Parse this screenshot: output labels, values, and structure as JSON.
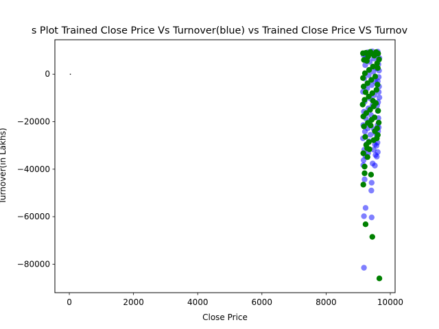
{
  "chart_data": {
    "type": "scatter",
    "title": "s Plot Trained Close Price Vs Turnover(blue) vs Trained Close Price VS Turnov",
    "xlabel": "Close Price",
    "ylabel": "Turnover(in Lakhs)",
    "xlim": [
      -450,
      10150
    ],
    "ylim": [
      -92000,
      14500
    ],
    "xticks": [
      0,
      2000,
      4000,
      6000,
      8000,
      10000
    ],
    "yticks": [
      0,
      -20000,
      -40000,
      -60000,
      -80000
    ],
    "xtick_labels": [
      "0",
      "2000",
      "4000",
      "6000",
      "8000",
      "10000"
    ],
    "ytick_labels": [
      "0",
      "−20000",
      "−40000",
      "−60000",
      "−80000"
    ],
    "grid": false,
    "legend": "none",
    "series": [
      {
        "color": "#0000ff",
        "alpha": 0.5,
        "points": [
          [
            9180,
            -81500
          ],
          [
            9180,
            -59800
          ],
          [
            9420,
            -60300
          ],
          [
            9230,
            -56300
          ],
          [
            9410,
            -49000
          ],
          [
            9420,
            -45700
          ],
          [
            9200,
            -44300
          ],
          [
            9520,
            -38500
          ],
          [
            9160,
            -38300
          ],
          [
            9450,
            -37600
          ],
          [
            9580,
            -34700
          ],
          [
            9610,
            -32800
          ],
          [
            9570,
            -30100
          ],
          [
            9600,
            -28800
          ],
          [
            9580,
            -26800
          ],
          [
            9550,
            -25000
          ],
          [
            9620,
            -24000
          ],
          [
            9640,
            -22400
          ],
          [
            9600,
            -21500
          ],
          [
            9630,
            -18500
          ],
          [
            9610,
            -15500
          ],
          [
            9590,
            -13200
          ],
          [
            9620,
            -11800
          ],
          [
            9660,
            -9800
          ],
          [
            9640,
            -7500
          ],
          [
            9650,
            -5200
          ],
          [
            9610,
            -3000
          ],
          [
            9640,
            -1200
          ],
          [
            9650,
            1500
          ],
          [
            9630,
            4200
          ],
          [
            9660,
            6800
          ],
          [
            9610,
            9500
          ],
          [
            9170,
            -36200
          ],
          [
            9230,
            -34500
          ],
          [
            9310,
            -33200
          ],
          [
            9190,
            -31800
          ],
          [
            9260,
            -29500
          ],
          [
            9340,
            -28200
          ],
          [
            9150,
            -27000
          ],
          [
            9380,
            -25500
          ],
          [
            9210,
            -24200
          ],
          [
            9300,
            -22800
          ],
          [
            9160,
            -21400
          ],
          [
            9360,
            -20000
          ],
          [
            9240,
            -18600
          ],
          [
            9400,
            -17200
          ],
          [
            9180,
            -15800
          ],
          [
            9320,
            -14400
          ],
          [
            9450,
            -13000
          ],
          [
            9200,
            -11600
          ],
          [
            9370,
            -10200
          ],
          [
            9500,
            -8800
          ],
          [
            9150,
            -7400
          ],
          [
            9280,
            -6000
          ],
          [
            9420,
            -4600
          ],
          [
            9540,
            -3200
          ],
          [
            9190,
            -1800
          ],
          [
            9330,
            -400
          ],
          [
            9470,
            1000
          ],
          [
            9580,
            2400
          ],
          [
            9220,
            3800
          ],
          [
            9360,
            5200
          ],
          [
            9490,
            6600
          ],
          [
            9170,
            8000
          ],
          [
            9300,
            9200
          ],
          [
            9440,
            9600
          ],
          [
            9560,
            8400
          ],
          [
            9250,
            7200
          ],
          [
            9520,
            -29600
          ],
          [
            9480,
            -31800
          ],
          [
            9540,
            -34000
          ],
          [
            9490,
            -23200
          ]
        ]
      },
      {
        "color": "#008000",
        "alpha": 1.0,
        "points": [
          [
            9660,
            -86000
          ],
          [
            9440,
            -68500
          ],
          [
            9230,
            -63200
          ],
          [
            9160,
            -46500
          ],
          [
            9200,
            -41700
          ],
          [
            9400,
            -42300
          ],
          [
            9200,
            -38900
          ],
          [
            9290,
            -34900
          ],
          [
            9160,
            -33300
          ],
          [
            9350,
            -31600
          ],
          [
            9250,
            -29800
          ],
          [
            9480,
            -27800
          ],
          [
            9580,
            -27000
          ],
          [
            9610,
            -25600
          ],
          [
            9520,
            -24000
          ],
          [
            9590,
            -22800
          ],
          [
            9180,
            -22000
          ],
          [
            9300,
            -20500
          ],
          [
            9420,
            -19200
          ],
          [
            9160,
            -17800
          ],
          [
            9250,
            -16400
          ],
          [
            9370,
            -15000
          ],
          [
            9480,
            -13600
          ],
          [
            9550,
            -12200
          ],
          [
            9200,
            -10800
          ],
          [
            9330,
            -9400
          ],
          [
            9440,
            -8000
          ],
          [
            9570,
            -6600
          ],
          [
            9170,
            -5200
          ],
          [
            9290,
            -3800
          ],
          [
            9410,
            -2400
          ],
          [
            9530,
            -1000
          ],
          [
            9210,
            400
          ],
          [
            9340,
            1800
          ],
          [
            9460,
            3200
          ],
          [
            9590,
            4600
          ],
          [
            9180,
            6000
          ],
          [
            9310,
            7400
          ],
          [
            9430,
            8600
          ],
          [
            9560,
            9300
          ],
          [
            9240,
            9000
          ],
          [
            9620,
            8700
          ],
          [
            9150,
            8800
          ],
          [
            9380,
            9400
          ],
          [
            9500,
            7800
          ],
          [
            9270,
            5600
          ],
          [
            9610,
            2600
          ],
          [
            9150,
            -1600
          ],
          [
            9600,
            -4400
          ],
          [
            9230,
            -7600
          ],
          [
            9620,
            -15400
          ],
          [
            9140,
            -12800
          ],
          [
            9390,
            -21600
          ],
          [
            9510,
            -18200
          ],
          [
            9220,
            -26400
          ],
          [
            9330,
            -28600
          ],
          [
            9460,
            -11200
          ],
          [
            9650,
            6200
          ],
          [
            9640,
            -20400
          ],
          [
            9280,
            -31200
          ]
        ]
      },
      {
        "color": "#000000",
        "alpha": 1.0,
        "points": [
          [
            30,
            0
          ]
        ]
      }
    ]
  }
}
